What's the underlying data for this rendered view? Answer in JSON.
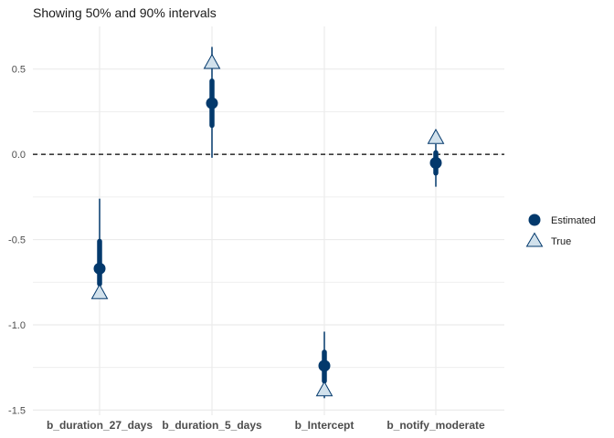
{
  "chart_data": {
    "type": "interval",
    "title": "Showing 50% and 90% intervals",
    "xlabel": "",
    "ylabel": "",
    "categories": [
      "b_duration_27_days",
      "b_duration_5_days",
      "b_Intercept",
      "b_notify_moderate"
    ],
    "estimated": {
      "name": "Estimated",
      "values": [
        -0.67,
        0.3,
        -1.24,
        -0.05
      ],
      "interval_50": [
        [
          -0.76,
          -0.51
        ],
        [
          0.17,
          0.43
        ],
        [
          -1.33,
          -1.16
        ],
        [
          -0.11,
          0.01
        ]
      ],
      "interval_90": [
        [
          -0.84,
          -0.26
        ],
        [
          -0.02,
          0.63
        ],
        [
          -1.43,
          -1.04
        ],
        [
          -0.19,
          0.06
        ]
      ]
    },
    "true": {
      "name": "True",
      "values": [
        -0.81,
        0.54,
        -1.38,
        0.1
      ]
    },
    "reference_line": 0,
    "yticks": [
      -1.5,
      -1.0,
      -0.5,
      0.0,
      0.5
    ],
    "ytick_labels": [
      "-1.5",
      "-1.0",
      "-0.5",
      "0.0",
      "0.5"
    ],
    "ylim": [
      -1.53,
      0.75
    ],
    "grid": true,
    "legend_position": "right",
    "colors": {
      "estimated": "#03396c",
      "true_fill": "#d1e1ec",
      "true_stroke": "#03396c",
      "grid": "#ebebeb",
      "reference": "#000000"
    }
  }
}
